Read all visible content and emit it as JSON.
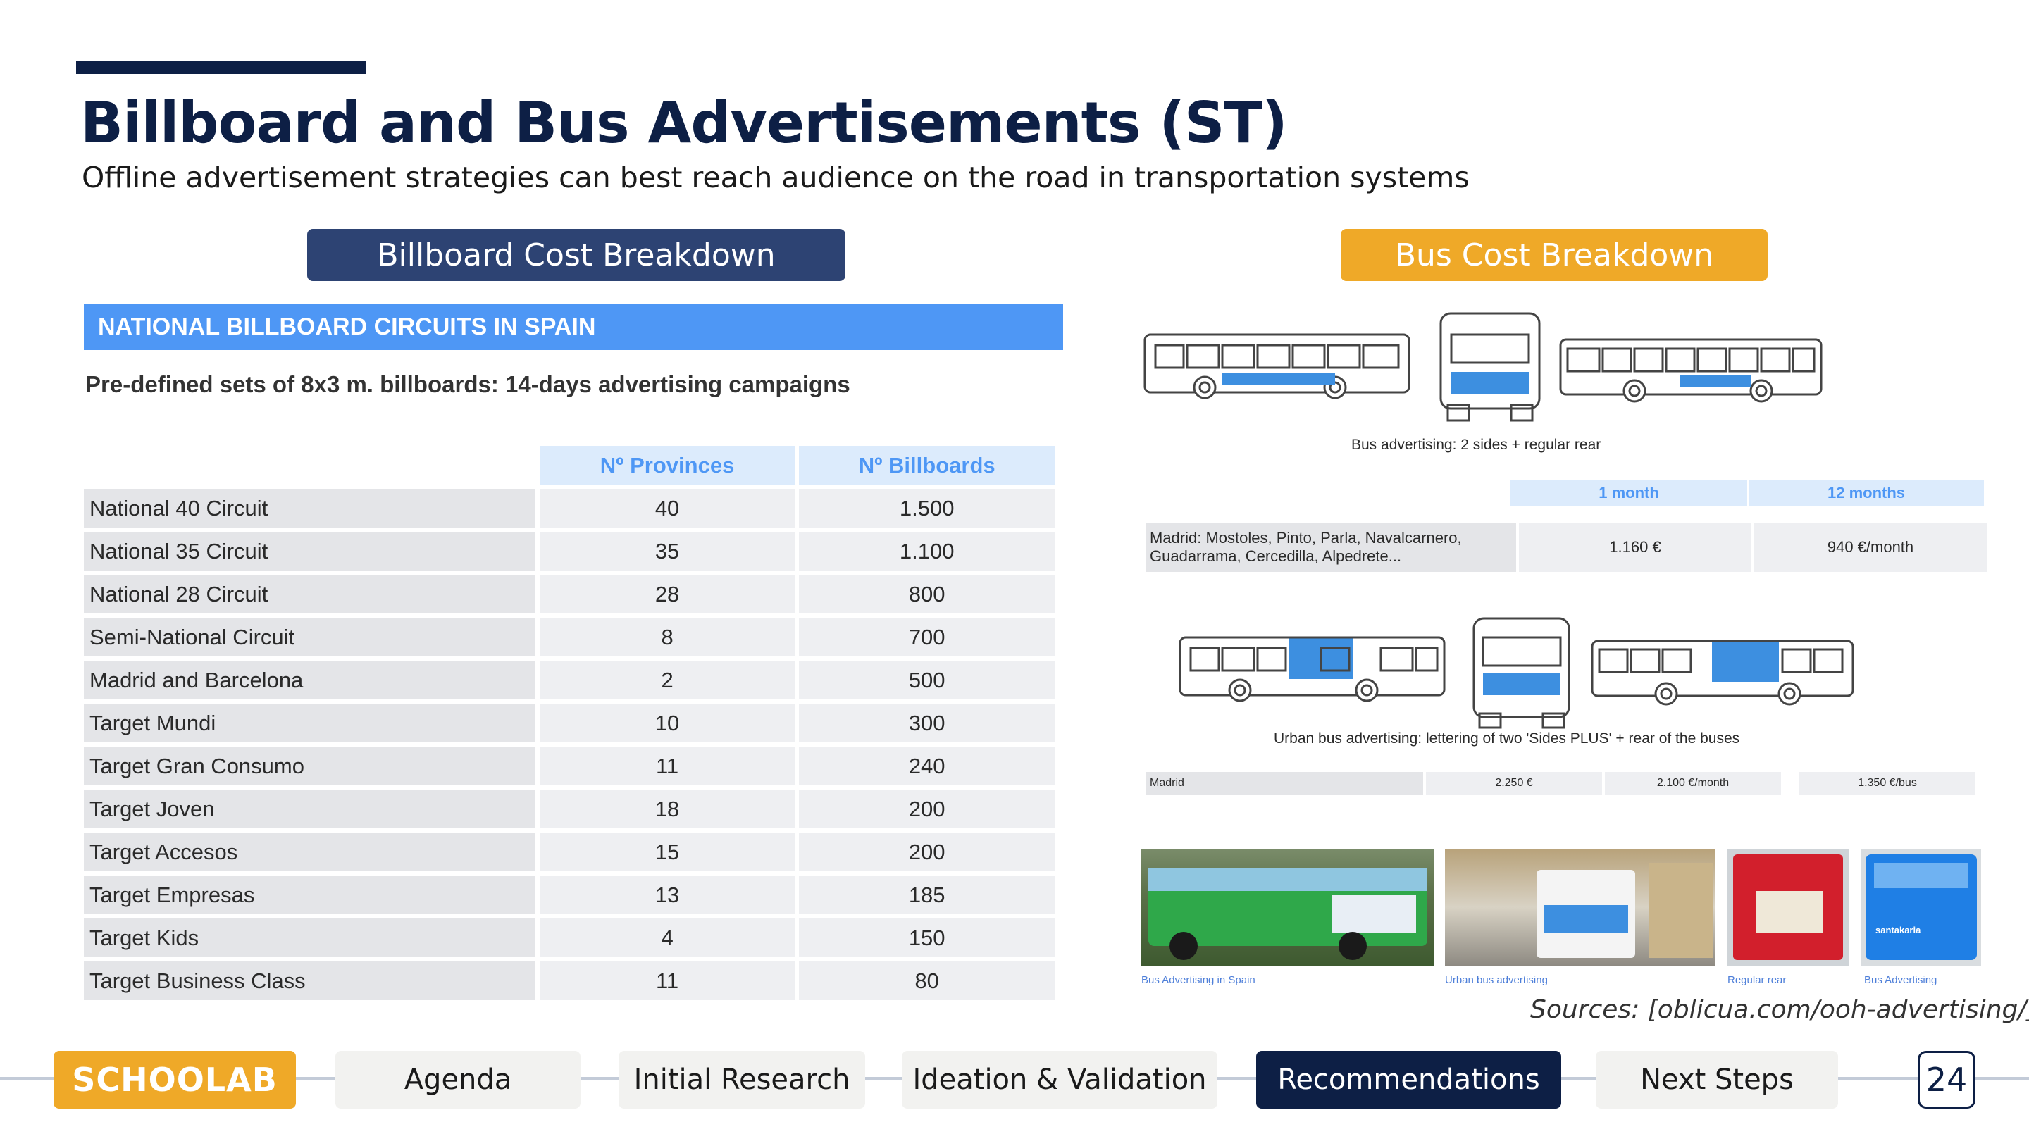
{
  "title": "Billboard and Bus Advertisements (ST)",
  "subtitle": "Offline advertisement strategies can best reach audience on the road in transportation systems",
  "billboard_section": {
    "pill_label": "Billboard Cost Breakdown",
    "header": "NATIONAL BILLBOARD CIRCUITS IN SPAIN",
    "description": "Pre-defined sets of 8x3 m. billboards: 14-days advertising campaigns",
    "columns": [
      "Nº Provinces",
      "Nº Billboards"
    ],
    "rows": [
      {
        "name": "National 40 Circuit",
        "provinces": "40",
        "billboards": "1.500"
      },
      {
        "name": "National 35 Circuit",
        "provinces": "35",
        "billboards": "1.100"
      },
      {
        "name": "National 28 Circuit",
        "provinces": "28",
        "billboards": "800"
      },
      {
        "name": "Semi-National Circuit",
        "provinces": "8",
        "billboards": "700"
      },
      {
        "name": "Madrid and Barcelona",
        "provinces": "2",
        "billboards": "500"
      },
      {
        "name": "Target Mundi",
        "provinces": "10",
        "billboards": "300"
      },
      {
        "name": "Target Gran Consumo",
        "provinces": "11",
        "billboards": "240"
      },
      {
        "name": "Target Joven",
        "provinces": "18",
        "billboards": "200"
      },
      {
        "name": "Target Accesos",
        "provinces": "15",
        "billboards": "200"
      },
      {
        "name": "Target Empresas",
        "provinces": "13",
        "billboards": "185"
      },
      {
        "name": "Target Kids",
        "provinces": "4",
        "billboards": "150"
      },
      {
        "name": "Target Business Class",
        "provinces": "11",
        "billboards": "80"
      }
    ]
  },
  "bus_section": {
    "pill_label": "Bus Cost Breakdown",
    "caption1": "Bus advertising: 2 sides + regular rear",
    "table1": {
      "columns": [
        "1 month",
        "12 months"
      ],
      "row_label_line1": "Madrid: Mostoles, Pinto, Parla, Navalcarnero,",
      "row_label_line2": "Guadarrama, Cercedilla, Alpedrete...",
      "month_price": "1.160 €",
      "year_price": "940 €/month"
    },
    "caption2": "Urban bus advertising: lettering of two 'Sides PLUS' + rear of the buses",
    "table2": {
      "label": "Madrid",
      "values": [
        "2.250 €",
        "2.100 €/month",
        "1.350 €/bus"
      ]
    },
    "photo_captions": [
      "Bus Advertising in Spain",
      "Urban bus advertising",
      "Regular rear",
      "Bus Advertising"
    ],
    "photo_texts": [
      "santakaria"
    ]
  },
  "sources": "Sources: [oblicua.com/ooh-advertising/]",
  "footer": {
    "logo": "SCHOOLAB",
    "nav": [
      "Agenda",
      "Initial Research",
      "Ideation & Validation",
      "Recommendations",
      "Next Steps"
    ],
    "page_number": "24"
  },
  "colors": {
    "navy": "#0d1f45",
    "accent_orange": "#efa928",
    "table_blue": "#4e97f5",
    "bus_highlight": "#3d8fe0"
  }
}
